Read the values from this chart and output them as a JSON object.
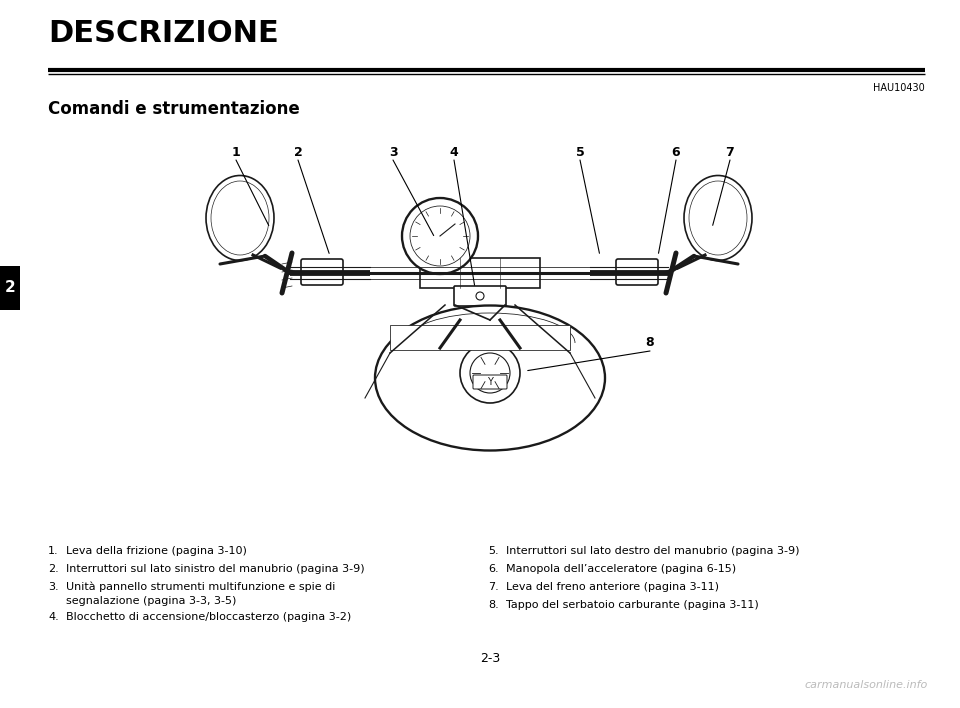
{
  "title": "DESCRIZIONE",
  "code": "HAU10430",
  "subtitle": "Comandi e strumentazione",
  "page_number": "2-3",
  "chapter_number": "2",
  "bg": "#ffffff",
  "black": "#000000",
  "gray_light": "#cccccc",
  "gray_mid": "#888888",
  "items_left": [
    [
      "1.",
      "Leva della frizione (pagina 3-10)"
    ],
    [
      "2.",
      "Interruttori sul lato sinistro del manubrio (pagina 3-9)"
    ],
    [
      "3.",
      "Unità pannello strumenti multifunzione e spie di"
    ],
    [
      "",
      "segnalazione (pagina 3-3, 3-5)"
    ],
    [
      "4.",
      "Blocchetto di accensione/bloccasterzo (pagina 3-2)"
    ]
  ],
  "items_right": [
    [
      "5.",
      "Interruttori sul lato destro del manubrio (pagina 3-9)"
    ],
    [
      "6.",
      "Manopola dell’acceleratore (pagina 6-15)"
    ],
    [
      "7.",
      "Leva del freno anteriore (pagina 3-11)"
    ],
    [
      "8.",
      "Tappo del serbatoio carburante (pagina 3-11)"
    ]
  ],
  "watermark": "carmanualsonline.info",
  "fig_width": 9.6,
  "fig_height": 7.08,
  "dpi": 100,
  "title_fontsize": 22,
  "subtitle_fontsize": 12,
  "body_fontsize": 8,
  "label_fontsize": 9,
  "code_fontsize": 7,
  "page_fontsize": 9,
  "watermark_fontsize": 8
}
